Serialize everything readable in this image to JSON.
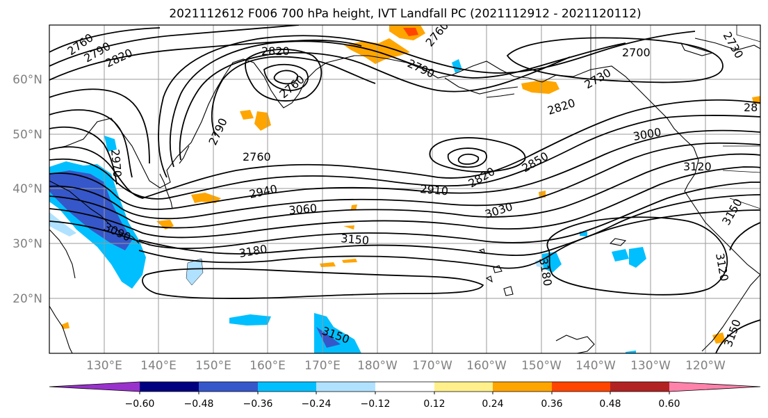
{
  "title": "2021112612 F006 700 hPa height, IVT Landfall PC (2021112912 - 2021120112)",
  "map": {
    "lat_labels": [
      "60°N",
      "50°N",
      "40°N",
      "30°N",
      "20°N"
    ],
    "lon_labels": [
      "130°E",
      "140°E",
      "150°E",
      "160°E",
      "170°E",
      "180°W",
      "170°W",
      "160°W",
      "150°W",
      "140°W",
      "130°W",
      "120°W"
    ]
  },
  "contour_labels": [
    "2760",
    "2790",
    "2820",
    "2820",
    "2760",
    "2790",
    "2760",
    "2760",
    "2790",
    "2700",
    "2730",
    "2730",
    "2820",
    "3000",
    "28",
    "3120",
    "2970",
    "2940",
    "3060",
    "2910",
    "2820",
    "2850",
    "3030",
    "3090",
    "3150",
    "3180",
    "3180",
    "3150",
    "3120",
    "3150",
    "3150"
  ],
  "colorbar": {
    "ticks": [
      "−0.60",
      "−0.48",
      "−0.36",
      "−0.24",
      "−0.12",
      "0.12",
      "0.24",
      "0.36",
      "0.48",
      "0.60"
    ],
    "colors": [
      "#9932cc",
      "#000080",
      "#3657c9",
      "#00bfff",
      "#b0e2ff",
      "#ffffff",
      "#fff08c",
      "#ffa500",
      "#ff4500",
      "#b22222",
      "#ff82ab"
    ]
  }
}
